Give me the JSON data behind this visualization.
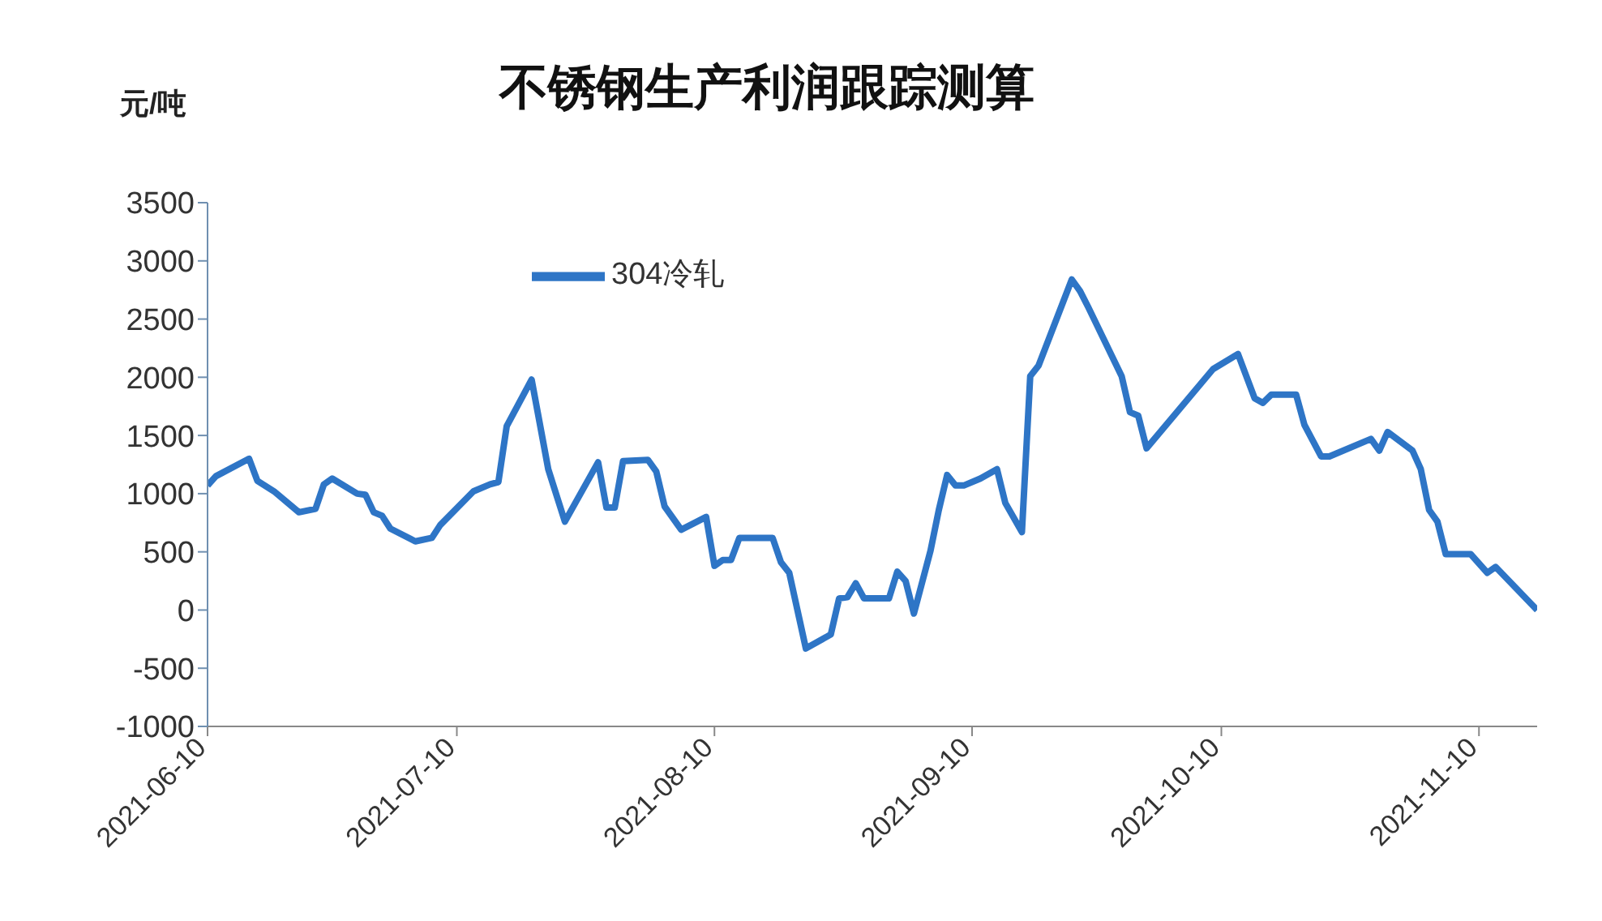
{
  "chart_data": {
    "type": "line",
    "title": "不锈钢生产利润跟踪测算",
    "ylabel": "元/吨",
    "x": [
      "2021-06-10",
      "2021-06-11",
      "2021-06-15",
      "2021-06-16",
      "2021-06-18",
      "2021-06-21",
      "2021-06-23",
      "2021-06-24",
      "2021-06-25",
      "2021-06-28",
      "2021-06-29",
      "2021-06-30",
      "2021-07-01",
      "2021-07-02",
      "2021-07-05",
      "2021-07-07",
      "2021-07-08",
      "2021-07-12",
      "2021-07-14",
      "2021-07-15",
      "2021-07-16",
      "2021-07-19",
      "2021-07-21",
      "2021-07-23",
      "2021-07-27",
      "2021-07-28",
      "2021-07-29",
      "2021-07-30",
      "2021-08-02",
      "2021-08-03",
      "2021-08-04",
      "2021-08-06",
      "2021-08-09",
      "2021-08-10",
      "2021-08-11",
      "2021-08-12",
      "2021-08-13",
      "2021-08-17",
      "2021-08-18",
      "2021-08-19",
      "2021-08-21",
      "2021-08-24",
      "2021-08-25",
      "2021-08-26",
      "2021-08-27",
      "2021-08-28",
      "2021-08-31",
      "2021-09-01",
      "2021-09-02",
      "2021-09-03",
      "2021-09-05",
      "2021-09-06",
      "2021-09-07",
      "2021-09-08",
      "2021-09-09",
      "2021-09-11",
      "2021-09-13",
      "2021-09-14",
      "2021-09-16",
      "2021-09-17",
      "2021-09-18",
      "2021-09-22",
      "2021-09-23",
      "2021-09-24",
      "2021-09-28",
      "2021-09-29",
      "2021-09-30",
      "2021-10-01",
      "2021-10-09",
      "2021-10-12",
      "2021-10-14",
      "2021-10-15",
      "2021-10-16",
      "2021-10-19",
      "2021-10-20",
      "2021-10-22",
      "2021-10-23",
      "2021-10-28",
      "2021-10-29",
      "2021-10-30",
      "2021-11-02",
      "2021-11-03",
      "2021-11-04",
      "2021-11-05",
      "2021-11-06",
      "2021-11-09",
      "2021-11-11",
      "2021-11-12",
      "2021-11-17"
    ],
    "series": [
      {
        "name": "304冷轧",
        "color": "#2e75c6",
        "values": [
          1070,
          1150,
          1300,
          1110,
          1020,
          840,
          870,
          1080,
          1130,
          1000,
          990,
          840,
          810,
          700,
          590,
          620,
          730,
          1020,
          1080,
          1100,
          1580,
          1980,
          1210,
          760,
          1270,
          880,
          880,
          1280,
          1290,
          1190,
          890,
          690,
          800,
          380,
          430,
          430,
          620,
          620,
          410,
          320,
          -330,
          -210,
          100,
          110,
          230,
          100,
          100,
          330,
          250,
          -30,
          510,
          860,
          1160,
          1070,
          1070,
          1130,
          1210,
          920,
          670,
          2010,
          2100,
          2840,
          2740,
          2600,
          2010,
          1700,
          1670,
          1390,
          2070,
          2200,
          1820,
          1780,
          1850,
          1850,
          1590,
          1320,
          1320,
          1470,
          1370,
          1530,
          1370,
          1210,
          860,
          760,
          480,
          480,
          320,
          370,
          0
        ]
      }
    ],
    "xlim": [
      "2021-06-10",
      "2021-11-17"
    ],
    "xticks": [
      "2021-06-10",
      "2021-07-10",
      "2021-08-10",
      "2021-09-10",
      "2021-10-10",
      "2021-11-10"
    ],
    "ylim": [
      -1000,
      3500
    ],
    "yticks": [
      -1000,
      -500,
      0,
      500,
      1000,
      1500,
      2000,
      2500,
      3000,
      3500
    ],
    "legend": "top left",
    "grid": false,
    "marker": "none",
    "line_style": "solid"
  }
}
